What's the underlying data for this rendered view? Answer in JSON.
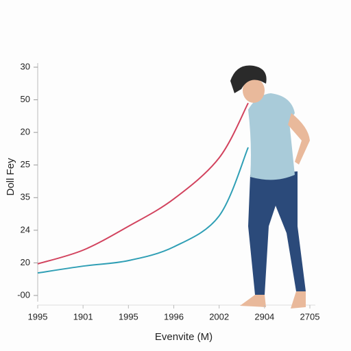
{
  "chart_data": {
    "type": "line",
    "y_label": "Doll Fey",
    "x_label": "Evenvite (M)",
    "xlim": [
      0,
      6
    ],
    "xticks": [
      {
        "value": 0,
        "label": "1995"
      },
      {
        "value": 1,
        "label": "1901"
      },
      {
        "value": 2,
        "label": "1995"
      },
      {
        "value": 3,
        "label": "1996"
      },
      {
        "value": 4,
        "label": "2002"
      },
      {
        "value": 5,
        "label": "2904"
      },
      {
        "value": 6,
        "label": "2705"
      }
    ],
    "ylim": [
      0,
      7
    ],
    "yticks": [
      {
        "value": 0,
        "label": "-00"
      },
      {
        "value": 1,
        "label": "20"
      },
      {
        "value": 2,
        "label": "24"
      },
      {
        "value": 3,
        "label": "35"
      },
      {
        "value": 4,
        "label": "25"
      },
      {
        "value": 5,
        "label": "20"
      },
      {
        "value": 6,
        "label": "50"
      },
      {
        "value": 7,
        "label": "30"
      }
    ],
    "series": [
      {
        "color": "#d2435e",
        "x": [
          0,
          1,
          2,
          3,
          4,
          4.64
        ],
        "values": [
          0.97,
          1.39,
          2.12,
          2.96,
          4.22,
          5.9
        ]
      },
      {
        "color": "#2f9fb5",
        "x": [
          0,
          1,
          2,
          3,
          4,
          4.64
        ],
        "values": [
          0.69,
          0.9,
          1.07,
          1.49,
          2.44,
          4.54
        ]
      }
    ]
  }
}
